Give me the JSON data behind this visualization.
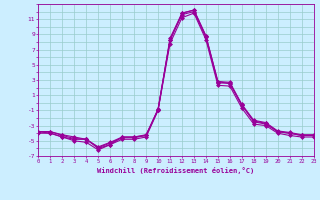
{
  "x": [
    0,
    1,
    2,
    3,
    4,
    5,
    6,
    7,
    8,
    9,
    10,
    11,
    12,
    13,
    14,
    15,
    16,
    17,
    18,
    19,
    20,
    21,
    22,
    23
  ],
  "lines": [
    [
      -4.0,
      -4.0,
      -4.5,
      -4.8,
      -4.8,
      -6.0,
      -5.5,
      -4.5,
      -4.5,
      -4.3,
      -0.8,
      8.2,
      11.8,
      12.2,
      8.8,
      2.8,
      2.5,
      -0.3,
      -2.5,
      -2.8,
      -3.8,
      -4.0,
      -4.3,
      -4.3
    ],
    [
      -3.8,
      -4.0,
      -4.5,
      -5.0,
      -5.2,
      -6.2,
      -5.5,
      -4.8,
      -4.8,
      -4.5,
      -1.0,
      7.8,
      11.2,
      11.8,
      8.3,
      2.3,
      2.2,
      -0.7,
      -2.8,
      -3.0,
      -4.0,
      -4.3,
      -4.5,
      -4.5
    ],
    [
      -3.8,
      -3.8,
      -4.2,
      -4.5,
      -4.8,
      -5.8,
      -5.2,
      -4.5,
      -4.5,
      -4.2,
      -0.9,
      8.5,
      11.8,
      12.2,
      8.8,
      2.8,
      2.7,
      -0.2,
      -2.3,
      -2.6,
      -3.7,
      -3.9,
      -4.2,
      -4.2
    ],
    [
      -3.8,
      -3.8,
      -4.3,
      -4.7,
      -4.8,
      -5.9,
      -5.3,
      -4.6,
      -4.6,
      -4.3,
      -0.95,
      8.3,
      11.6,
      12.0,
      8.6,
      2.6,
      2.6,
      -0.3,
      -2.4,
      -2.7,
      -3.8,
      -4.0,
      -4.3,
      -4.3
    ]
  ],
  "line_color": "#990099",
  "bg_color": "#cceeff",
  "grid_color": "#99cccc",
  "ylim": [
    -7,
    13
  ],
  "xlim": [
    0,
    23
  ],
  "yticks": [
    11,
    9,
    7,
    5,
    3,
    1,
    -1,
    -3,
    -5,
    -7
  ],
  "ytick_labels": [
    "11",
    "9",
    "7",
    "5",
    "3",
    "1",
    "-1",
    "-3",
    "-5",
    "-7"
  ],
  "xticks": [
    0,
    1,
    2,
    3,
    4,
    5,
    6,
    7,
    8,
    9,
    10,
    11,
    12,
    13,
    14,
    15,
    16,
    17,
    18,
    19,
    20,
    21,
    22,
    23
  ],
  "xlabel": "Windchill (Refroidissement éolien,°C)",
  "marker": "D",
  "marker_size": 2.0,
  "line_width": 0.8
}
